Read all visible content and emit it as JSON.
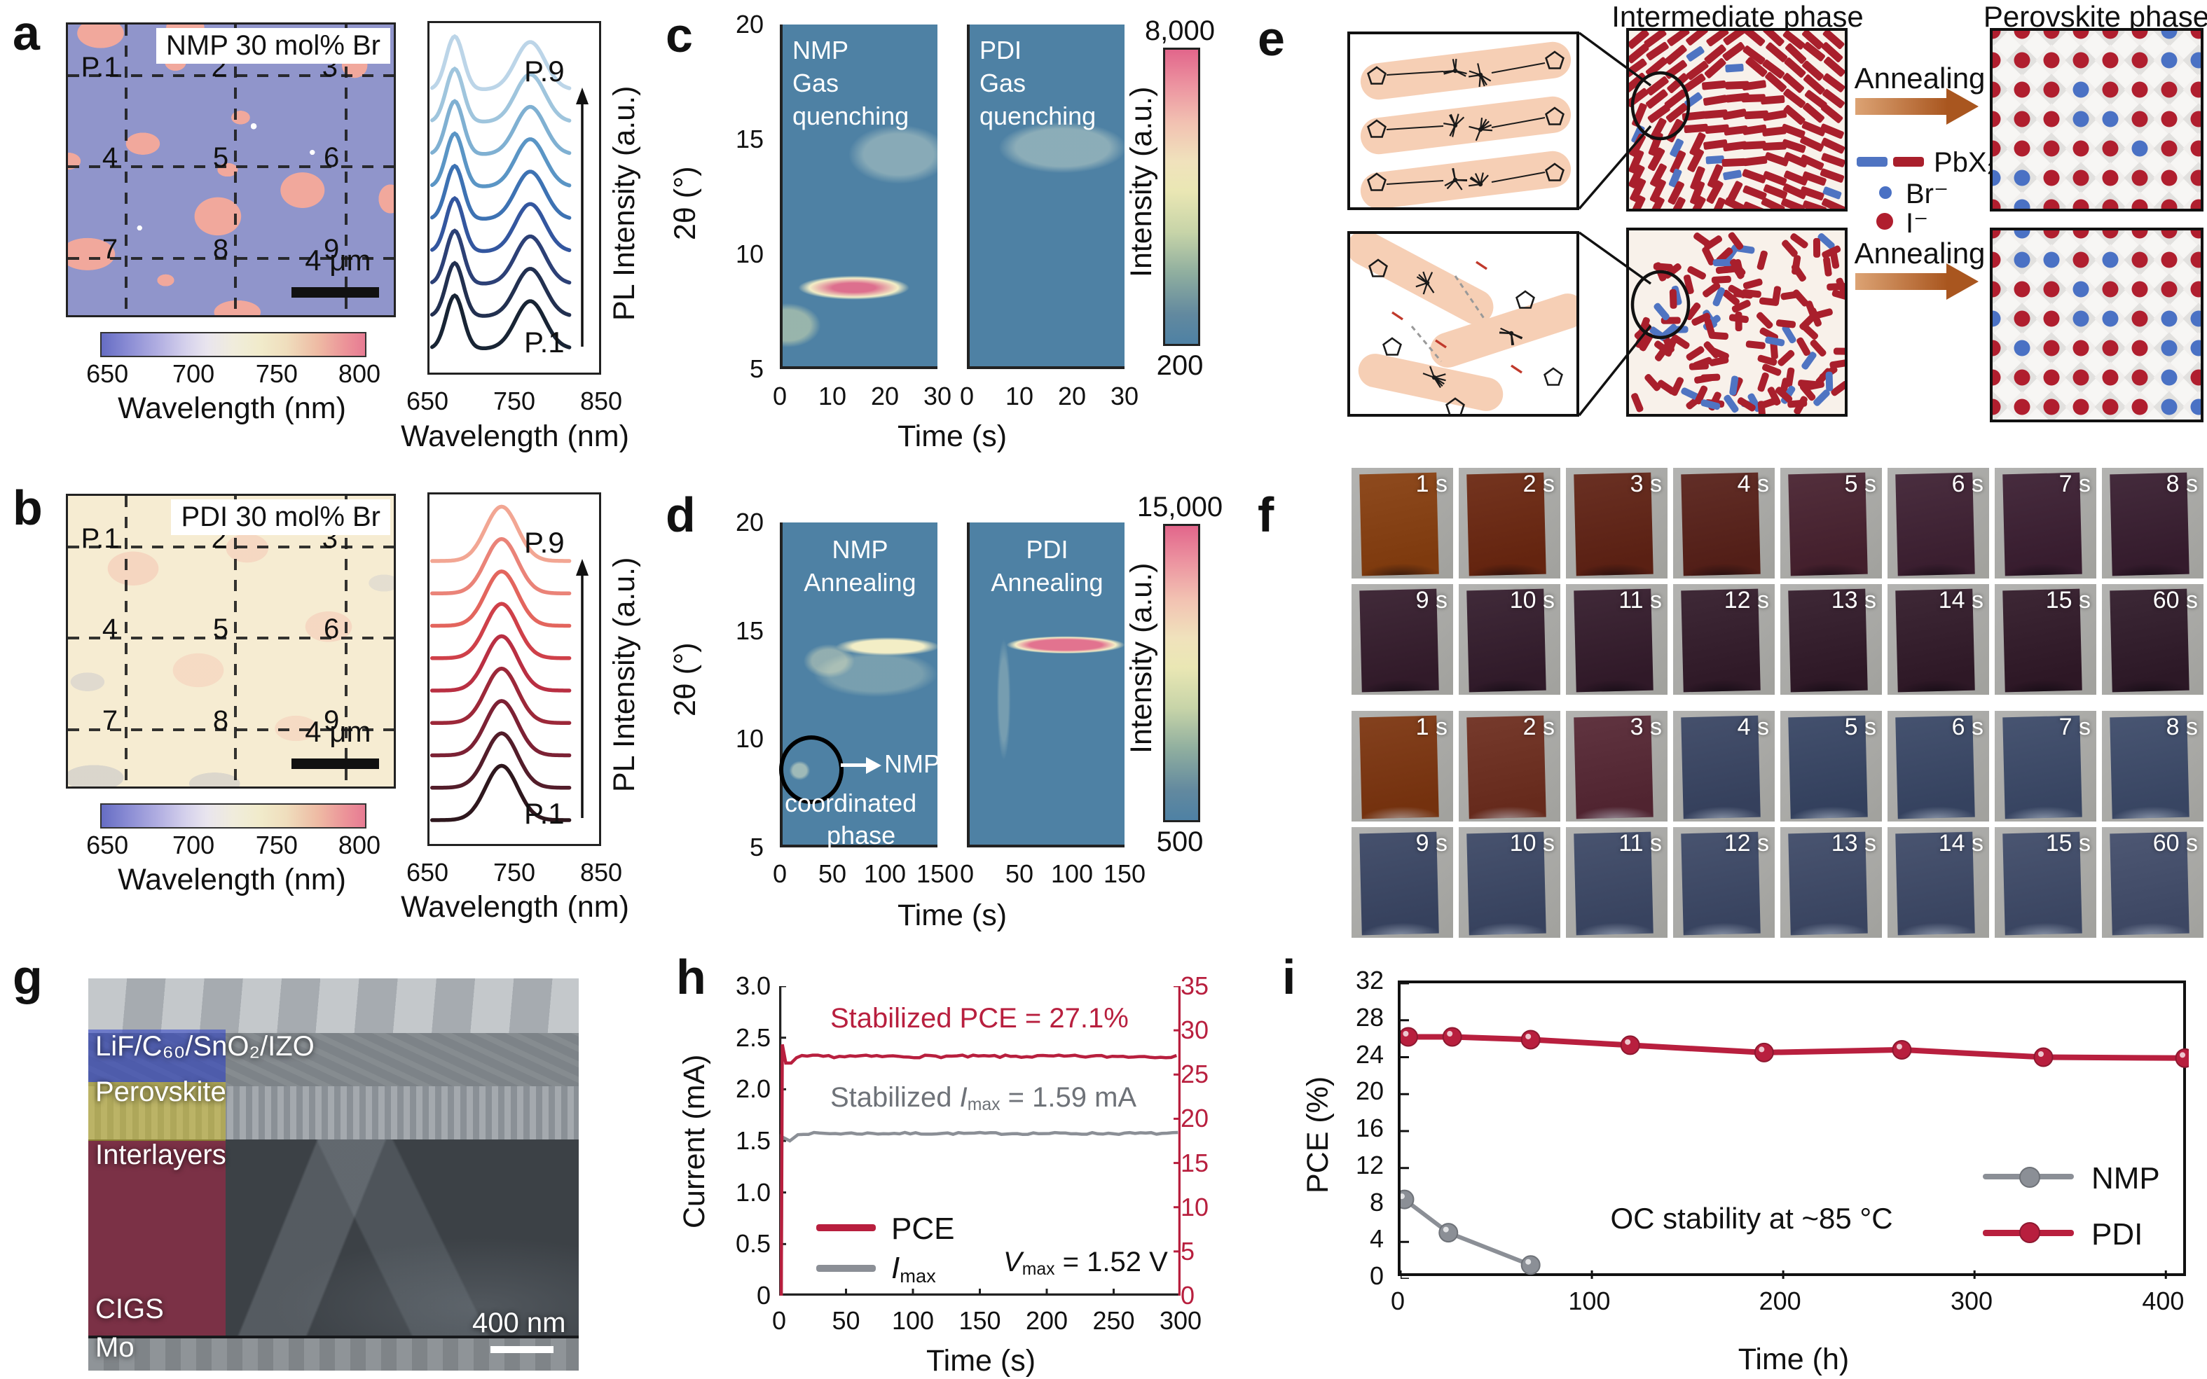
{
  "colors": {
    "accent_red": "#b81f3e",
    "gray_line": "#8b8f96",
    "heatmap_bg": "#4e81a4",
    "pbx_red": "#a91f2c",
    "pbx_blue": "#4f74c2",
    "ion_red": "#b01e2e",
    "ion_blue": "#4a71c4",
    "map_a_bg": "#9095cb",
    "map_a_patch": "#f1a89c",
    "map_b_bg": "#f6ecd2",
    "arrow_brown": "#a9561f"
  },
  "panels": {
    "a": {
      "letter": "a",
      "map": {
        "title": "NMP 30 mol% Br",
        "points": [
          "P.1",
          "2",
          "3",
          "4",
          "5",
          "6",
          "7",
          "8",
          "9"
        ],
        "scale_bar": "4 μm"
      },
      "colorbar": {
        "ticks": [
          "650",
          "700",
          "750",
          "800"
        ],
        "label": "Wavelength (nm)"
      },
      "spectra": {
        "xticks": [
          "650",
          "750",
          "850"
        ],
        "xlabel": "Wavelength (nm)",
        "ylabel": "PL Intensity (a.u.)",
        "top_label": "P.9",
        "bottom_label": "P.1",
        "colors_top_to_bottom": [
          "#bcd5e8",
          "#9fc5dd",
          "#7fb0d2",
          "#5a95c5",
          "#3d72b3",
          "#33569f",
          "#2c4076",
          "#223050",
          "#182434"
        ]
      }
    },
    "b": {
      "letter": "b",
      "map": {
        "title": "PDI 30 mol% Br",
        "points": [
          "P.1",
          "2",
          "3",
          "4",
          "5",
          "6",
          "7",
          "8",
          "9"
        ],
        "scale_bar": "4 μm"
      },
      "colorbar": {
        "ticks": [
          "650",
          "700",
          "750",
          "800"
        ],
        "label": "Wavelength (nm)"
      },
      "spectra": {
        "xticks": [
          "650",
          "750",
          "850"
        ],
        "xlabel": "Wavelength (nm)",
        "ylabel": "PL Intensity (a.u.)",
        "top_label": "P.9",
        "bottom_label": "P.1",
        "colors_top_to_bottom": [
          "#f2a693",
          "#ea8378",
          "#e3655d",
          "#cf4049",
          "#b92f42",
          "#9c2839",
          "#7c2134",
          "#531d2a",
          "#2e171d"
        ]
      }
    },
    "c": {
      "letter": "c",
      "left_title": "NMP\nGas\nquenching",
      "right_title": "PDI\nGas\nquenching",
      "yticks": [
        "20",
        "15",
        "10",
        "5"
      ],
      "ylabel": "2θ (°)",
      "xticks": [
        "0",
        "10",
        "20",
        "30"
      ],
      "xlabel": "Time (s)",
      "cbar_top": "8,000",
      "cbar_bottom": "200",
      "cbar_label": "Intensity (a.u.)"
    },
    "d": {
      "letter": "d",
      "left_title": "NMP\nAnnealing",
      "right_title": "PDI\nAnnealing",
      "yticks": [
        "20",
        "15",
        "10",
        "5"
      ],
      "ylabel": "2θ (°)",
      "xticks": [
        "0",
        "50",
        "100",
        "150"
      ],
      "xlabel": "Time (s)",
      "cbar_top": "15,000",
      "cbar_bottom": "500",
      "cbar_label": "Intensity (a.u.)",
      "ann1": "NMP",
      "ann2": "coordinated",
      "ann3": "phase"
    },
    "e": {
      "letter": "e",
      "header_intermediate": "Intermediate phase",
      "header_perovskite": "Perovskite phase",
      "annealing": "Annealing",
      "legend": {
        "pbx2": "PbX₂",
        "br": "Br⁻",
        "i": "I⁻"
      }
    },
    "f": {
      "letter": "f",
      "time_labels_row1": [
        "1 s",
        "2 s",
        "3 s",
        "4 s",
        "5 s",
        "6 s",
        "7 s",
        "8 s"
      ],
      "time_labels_row2": [
        "9 s",
        "10 s",
        "11 s",
        "12 s",
        "13 s",
        "14 s",
        "15 s",
        "60 s"
      ],
      "groups": [
        {
          "name": "film-set-nmp",
          "row1_colors": [
            "#8e4a1e",
            "#74341f",
            "#6a3023",
            "#622e27",
            "#532f3c",
            "#4a2e3f",
            "#472c3e",
            "#442b3c"
          ],
          "row2_colors": [
            "#412a39",
            "#402a39",
            "#402938",
            "#3f2937",
            "#3e2836",
            "#3e2836",
            "#3d2735",
            "#3c2836"
          ],
          "sheen": "dark"
        },
        {
          "name": "film-set-pdi",
          "row1_colors": [
            "#84411e",
            "#763a2c",
            "#603440",
            "#45506c",
            "#43506d",
            "#45526f",
            "#475471",
            "#485572"
          ],
          "row2_colors": [
            "#46516d",
            "#47526e",
            "#48536f",
            "#48536f",
            "#495470",
            "#495470",
            "#4a5571",
            "#4d5773"
          ],
          "sheen": "blue"
        }
      ]
    },
    "g": {
      "letter": "g",
      "layers": [
        "LiF/C₆₀/SnO₂/IZO",
        "Perovskite",
        "Interlayers",
        "CIGS",
        "Mo"
      ],
      "scale_bar": "400 nm"
    },
    "h": {
      "letter": "h",
      "ylabel_left": "Current (mA)",
      "yticks_left": [
        "3.0",
        "2.5",
        "2.0",
        "1.5",
        "1.0",
        "0.5",
        "0"
      ],
      "yticks_right": [
        "35",
        "30",
        "25",
        "20",
        "15",
        "10",
        "5",
        "0"
      ],
      "xticks": [
        "0",
        "50",
        "100",
        "150",
        "200",
        "250",
        "300"
      ],
      "xlabel": "Time (s)",
      "ann_pce": "Stabilized PCE = 27.1%",
      "ann_imax_pre": "Stabilized ",
      "ann_imax_sym": "I",
      "ann_imax_sub": "max",
      "ann_imax_post": " = 1.59 mA",
      "legend_pce": "PCE",
      "legend_imax_sym": "I",
      "legend_imax_sub": "max",
      "vmax_sym": "V",
      "vmax_sub": "max",
      "vmax_post": " = 1.52 V"
    },
    "i": {
      "letter": "i",
      "ylabel": "PCE (%)",
      "yticks": [
        "32",
        "28",
        "24",
        "20",
        "16",
        "12",
        "8",
        "4",
        "0"
      ],
      "xticks": [
        "0",
        "100",
        "200",
        "300",
        "400"
      ],
      "xlabel": "Time (h)",
      "annotation": "OC stability at ~85 °C",
      "legend_nmp": "NMP",
      "legend_pdi": "PDI"
    }
  },
  "chart_data": [
    {
      "id": "a_pl_map",
      "type": "heatmap",
      "title": "NMP 30 mol% Br",
      "variable": "PL peak wavelength (nm)",
      "colorbar_label": "Wavelength (nm)",
      "colorbar_range": [
        650,
        800
      ],
      "background_value_nm": 690,
      "patch_value_nm": 785,
      "grid_points": [
        "P.1",
        "2",
        "3",
        "4",
        "5",
        "6",
        "7",
        "8",
        "9"
      ],
      "scale_bar": "4 μm"
    },
    {
      "id": "a_pl_spectra",
      "type": "line",
      "xlabel": "Wavelength (nm)",
      "ylabel": "PL Intensity (a.u.)",
      "xlim": [
        650,
        850
      ],
      "xticks": [
        650,
        750,
        850
      ],
      "num_series": 9,
      "series_order": "P.1 (bottom, dark) to P.9 (top, light), stacked offsets",
      "peak_wavelengths_nm": [
        679,
        766
      ],
      "shape": "double-peaked"
    },
    {
      "id": "b_pl_map",
      "type": "heatmap",
      "title": "PDI 30 mol% Br",
      "variable": "PL peak wavelength (nm)",
      "colorbar_label": "Wavelength (nm)",
      "colorbar_range": [
        650,
        800
      ],
      "background_value_nm": 737,
      "grid_points": [
        "P.1",
        "2",
        "3",
        "4",
        "5",
        "6",
        "7",
        "8",
        "9"
      ],
      "scale_bar": "4 μm"
    },
    {
      "id": "b_pl_spectra",
      "type": "line",
      "xlabel": "Wavelength (nm)",
      "ylabel": "PL Intensity (a.u.)",
      "xlim": [
        650,
        850
      ],
      "xticks": [
        650,
        750,
        850
      ],
      "num_series": 9,
      "series_order": "P.1 (bottom, dark) to P.9 (top, light), stacked offsets",
      "peak_wavelengths_nm": [
        733
      ],
      "shape": "single-peaked"
    },
    {
      "id": "c_gixrd_gas_quenching",
      "type": "heatmap",
      "panels": [
        "NMP Gas quenching",
        "PDI Gas quenching"
      ],
      "xlabel": "Time (s)",
      "xlim": [
        0,
        30
      ],
      "xticks": [
        0,
        10,
        20,
        30
      ],
      "ylabel": "2θ (°)",
      "ylim": [
        5,
        20
      ],
      "yticks": [
        20,
        15,
        10,
        5
      ],
      "colorbar": {
        "label": "Intensity (a.u.)",
        "min": 200,
        "max": 8000
      },
      "features": [
        {
          "panel": "NMP",
          "two_theta_deg": 8.4,
          "time_range_s": [
            3,
            30
          ],
          "intensity": "strong (~8000)"
        },
        {
          "panel": "PDI",
          "two_theta_deg": 14.0,
          "time_range_s": [
            0,
            30
          ],
          "intensity": "very weak"
        }
      ]
    },
    {
      "id": "d_gixrd_annealing",
      "type": "heatmap",
      "panels": [
        "NMP Annealing",
        "PDI Annealing"
      ],
      "xlabel": "Time (s)",
      "xlim": [
        0,
        150
      ],
      "xticks": [
        0,
        50,
        100,
        150
      ],
      "ylabel": "2θ (°)",
      "ylim": [
        5,
        20
      ],
      "yticks": [
        20,
        15,
        10,
        5
      ],
      "colorbar": {
        "label": "Intensity (a.u.)",
        "min": 500,
        "max": 15000
      },
      "features": [
        {
          "panel": "NMP",
          "two_theta_deg": 14.2,
          "time_range_s": [
            40,
            150
          ],
          "intensity": "medium (pale)"
        },
        {
          "panel": "NMP",
          "two_theta_deg": 8.3,
          "time_range_s": [
            0,
            35
          ],
          "intensity": "weak",
          "annotation": "NMP coordinated phase"
        },
        {
          "panel": "PDI",
          "two_theta_deg": 14.3,
          "time_range_s": [
            25,
            150
          ],
          "intensity": "strong (~15000)"
        }
      ]
    },
    {
      "id": "h_mpp_tracking",
      "type": "line",
      "xlabel": "Time (s)",
      "xlim": [
        0,
        300
      ],
      "xticks": [
        0,
        50,
        100,
        150,
        200,
        250,
        300
      ],
      "y_left": {
        "label": "Current (mA)",
        "lim": [
          0,
          3
        ],
        "ticks": [
          0,
          0.5,
          1.0,
          1.5,
          2.0,
          2.5,
          3.0
        ]
      },
      "y_right": {
        "label": "PCE (%)",
        "lim": [
          0,
          35
        ],
        "ticks": [
          0,
          5,
          10,
          15,
          20,
          25,
          30,
          35
        ]
      },
      "series": [
        {
          "name": "PCE",
          "axis": "right",
          "stabilized_value": 27.1,
          "initial_spike": 28.4,
          "color": "#b81f3e"
        },
        {
          "name": "Imax",
          "axis": "left",
          "stabilized_value": 1.59,
          "plotted_level": 1.57,
          "color": "#8b8f96"
        }
      ],
      "annotations": [
        "Stabilized PCE = 27.1%",
        "Stabilized Imax = 1.59 mA",
        "Vmax = 1.52 V"
      ]
    },
    {
      "id": "i_thermal_stability",
      "type": "line",
      "xlabel": "Time (h)",
      "xlim": [
        0,
        415
      ],
      "xticks": [
        0,
        100,
        200,
        300,
        400
      ],
      "ylabel": "PCE (%)",
      "ylim": [
        0,
        32
      ],
      "yticks": [
        0,
        4,
        8,
        12,
        16,
        20,
        24,
        28,
        32
      ],
      "annotation": "OC stability at ~85 °C",
      "legend_position": "lower right",
      "series": [
        {
          "name": "NMP",
          "color": "#8b8f96",
          "x": [
            2,
            25,
            68
          ],
          "y": [
            8.6,
            5.0,
            1.5
          ]
        },
        {
          "name": "PDI",
          "color": "#b81f3e",
          "x": [
            4,
            27,
            68,
            120,
            190,
            262,
            336,
            410
          ],
          "y": [
            26.2,
            26.2,
            25.9,
            25.3,
            24.5,
            24.8,
            24.0,
            23.9
          ]
        }
      ]
    }
  ]
}
